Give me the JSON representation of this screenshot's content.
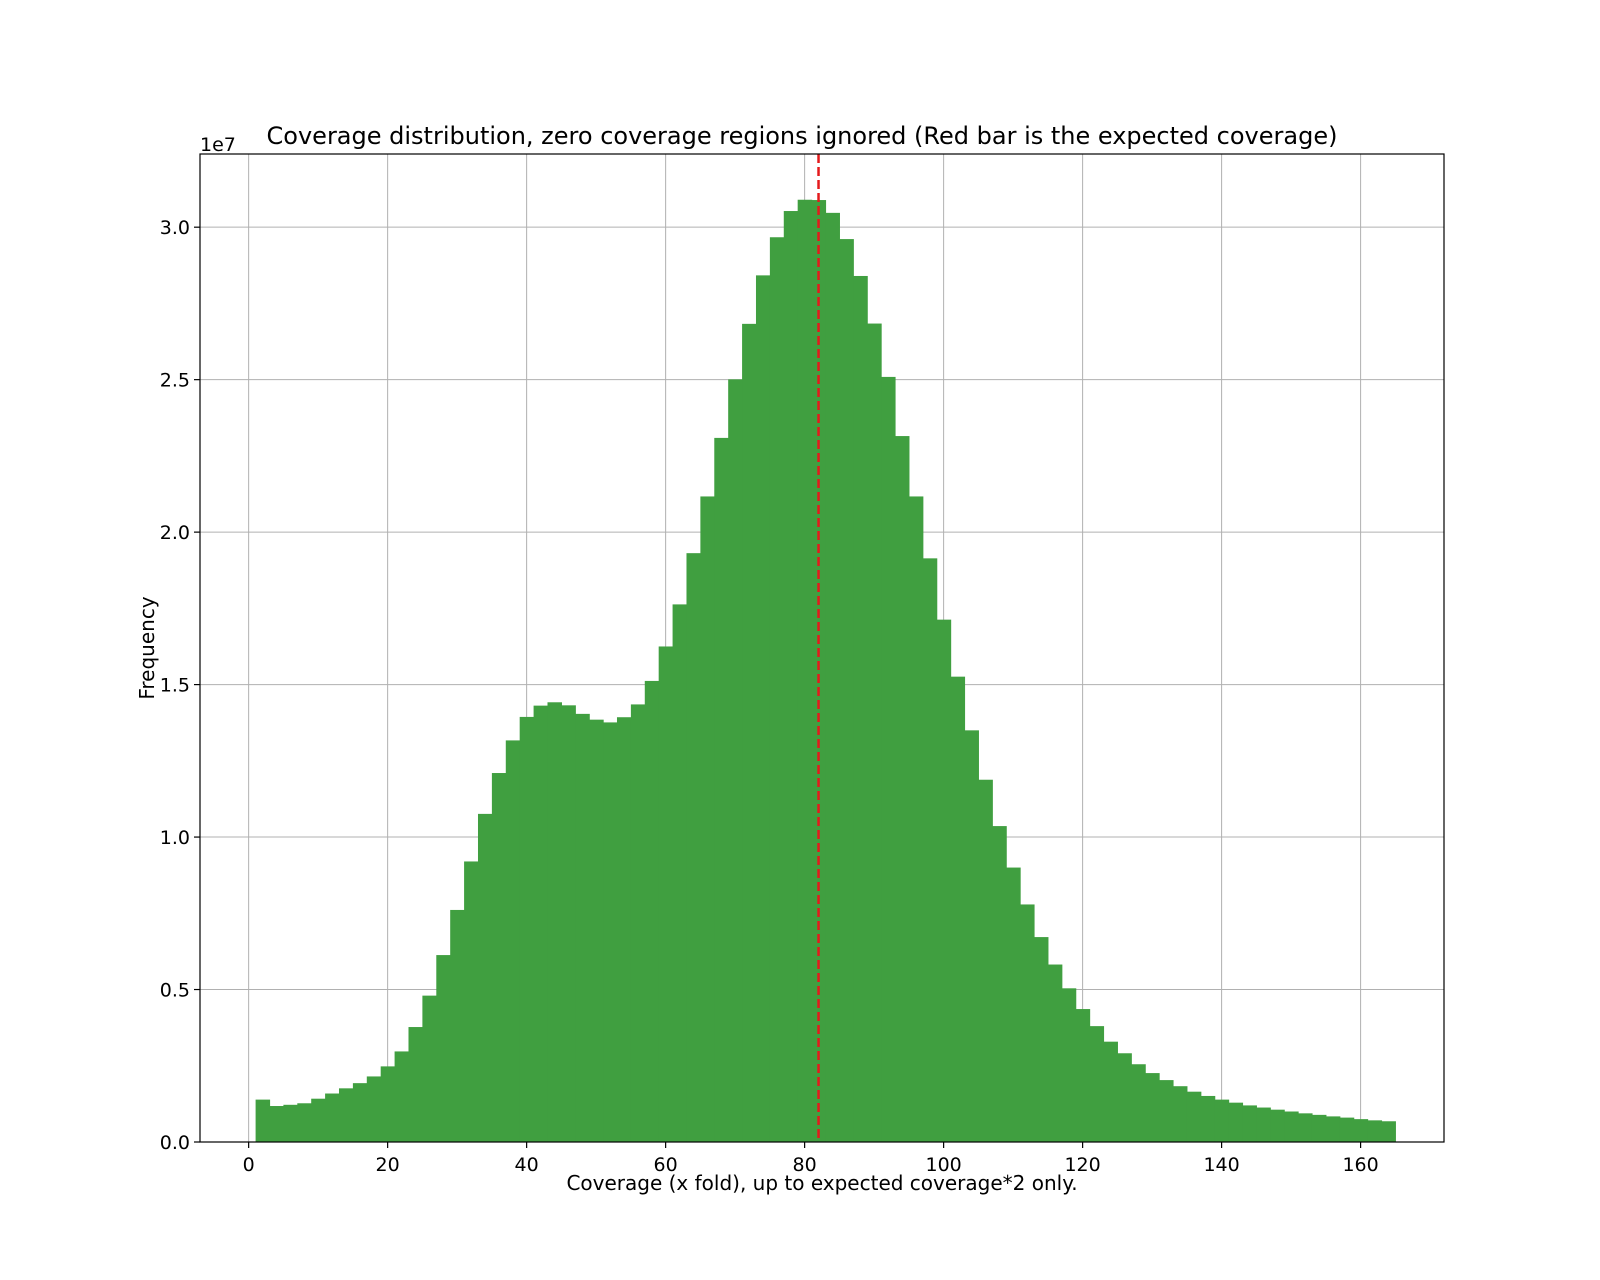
{
  "chart_data": {
    "type": "bar",
    "title": "Coverage distribution, zero coverage regions ignored (Red bar is the expected coverage)",
    "xlabel": "Coverage (x fold), up to expected coverage*2 only.",
    "ylabel": "Frequency",
    "y_offset_label": "1e7",
    "xlim": [
      -7,
      172
    ],
    "ylim": [
      0,
      3.24
    ],
    "x_ticks": [
      0,
      20,
      40,
      60,
      80,
      100,
      120,
      140,
      160
    ],
    "y_ticks": [
      0.0,
      0.5,
      1.0,
      1.5,
      2.0,
      2.5,
      3.0
    ],
    "y_tick_labels": [
      "0.0",
      "0.5",
      "1.0",
      "1.5",
      "2.0",
      "2.5",
      "3.0"
    ],
    "grid": true,
    "bin_start": 1,
    "bin_width": 2,
    "bar_color": "#409f40",
    "expected_coverage": 82,
    "expected_line_color": "#e41a1c",
    "values": [
      1.39,
      1.18,
      1.22,
      1.27,
      1.42,
      1.59,
      1.76,
      1.93,
      2.15,
      2.48,
      2.97,
      3.77,
      4.8,
      6.13,
      7.61,
      9.2,
      10.76,
      12.1,
      13.17,
      13.94,
      14.31,
      14.42,
      14.32,
      14.04,
      13.85,
      13.76,
      13.93,
      14.35,
      15.12,
      16.25,
      17.63,
      19.31,
      21.17,
      23.09,
      25.01,
      26.83,
      28.42,
      29.67,
      30.53,
      30.9,
      30.89,
      30.47,
      29.61,
      28.4,
      26.84,
      25.09,
      23.15,
      21.17,
      19.14,
      17.13,
      15.26,
      13.5,
      11.88,
      10.36,
      9.0,
      7.79,
      6.72,
      5.82,
      5.04,
      4.36,
      3.8,
      3.29,
      2.91,
      2.55,
      2.26,
      2.03,
      1.83,
      1.65,
      1.51,
      1.39,
      1.29,
      1.2,
      1.13,
      1.06,
      1.0,
      0.94,
      0.89,
      0.84,
      0.8,
      0.75,
      0.71,
      0.68
    ]
  }
}
